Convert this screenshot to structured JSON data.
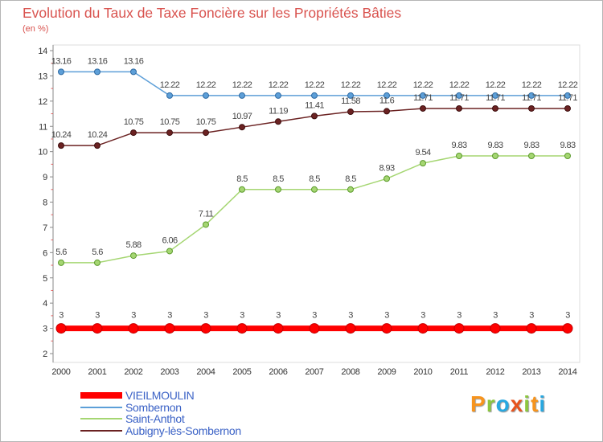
{
  "chart_data": {
    "type": "line",
    "title": "Evolution du Taux de Taxe Foncière sur les Propriétés Bâties",
    "subtitle": "(en %)",
    "x": [
      "2000",
      "2001",
      "2002",
      "2003",
      "2004",
      "2005",
      "2006",
      "2007",
      "2008",
      "2009",
      "2010",
      "2011",
      "2012",
      "2013",
      "2014"
    ],
    "ylim": [
      2,
      14
    ],
    "yticks": [
      2,
      3,
      4,
      5,
      6,
      7,
      8,
      9,
      10,
      11,
      12,
      13,
      14
    ],
    "grid": false,
    "legend_position": "bottom-left",
    "series": [
      {
        "name": "VIEILMOULIN",
        "color": "#ff0000",
        "marker_edge": "#c40000",
        "values": [
          3,
          3,
          3,
          3,
          3,
          3,
          3,
          3,
          3,
          3,
          3,
          3,
          3,
          3,
          3
        ]
      },
      {
        "name": "Sombernon",
        "color": "#5d9fd8",
        "marker_edge": "#2e6aa3",
        "values": [
          13.16,
          13.16,
          13.16,
          12.22,
          12.22,
          12.22,
          12.22,
          12.22,
          12.22,
          12.22,
          12.22,
          12.22,
          12.22,
          12.22,
          12.22
        ]
      },
      {
        "name": "Saint-Anthot",
        "color": "#a5d672",
        "marker_edge": "#5b9a2c",
        "values": [
          5.6,
          5.6,
          5.88,
          6.06,
          7.11,
          8.5,
          8.5,
          8.5,
          8.5,
          8.93,
          9.54,
          9.83,
          9.83,
          9.83,
          9.83
        ]
      },
      {
        "name": "Aubigny-lès-Sombernon",
        "color": "#6b2222",
        "marker_edge": "#3d0e0e",
        "values": [
          10.24,
          10.24,
          10.75,
          10.75,
          10.75,
          10.97,
          11.19,
          11.41,
          11.58,
          11.6,
          11.71,
          11.71,
          11.71,
          11.71,
          11.71
        ]
      }
    ]
  },
  "colors": {
    "title": "#d9534f",
    "legend_text": "#3b62c6"
  },
  "logo": {
    "text": "Proxiti",
    "letter_colors": [
      "#f7941d",
      "#8cc63f",
      "#29a8e0",
      "#e8541e",
      "#8cc63f",
      "#f7941d",
      "#29a8e0"
    ]
  }
}
